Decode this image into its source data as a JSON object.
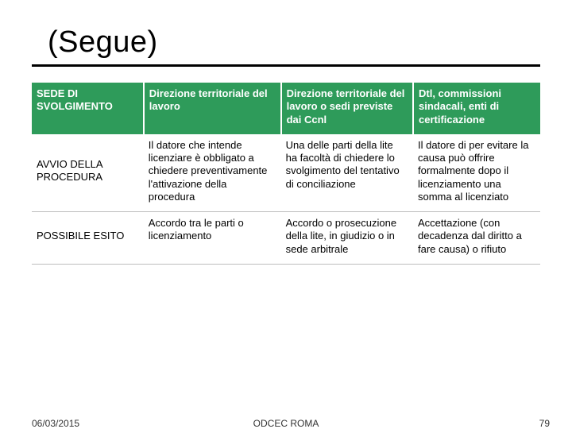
{
  "title": "(Segue)",
  "colors": {
    "header_bg": "#2e9b5a",
    "header_fg": "#ffffff",
    "rule": "#000000",
    "row_border": "#bdbdbd",
    "text": "#000000",
    "background": "#ffffff"
  },
  "table": {
    "columns": [
      "rowlabel",
      "col1",
      "col2",
      "col3"
    ],
    "column_widths_pct": [
      22,
      27,
      26,
      25
    ],
    "header": {
      "rowlabel": "SEDE DI SVOLGIMENTO",
      "col1": "Direzione territoriale del lavoro",
      "col2": "Direzione territoriale del lavoro o sedi previste dai Ccnl",
      "col3": "Dtl, commissioni sindacali, enti di certificazione"
    },
    "rows": [
      {
        "rowlabel": "AVVIO DELLA PROCEDURA",
        "col1": "Il datore che intende licenziare è obbligato a chiedere preventivamente l'attivazione della procedura",
        "col2": "Una delle parti della lite ha facoltà di chiedere lo svolgimento del tentativo di conciliazione",
        "col3": "Il datore di per evitare la causa può offrire formalmente dopo il licenziamento una somma al licenziato"
      },
      {
        "rowlabel": "POSSIBILE ESITO",
        "col1": "Accordo tra le parti o licenziamento",
        "col2": "Accordo o prosecuzione della lite, in giudizio o in sede arbitrale",
        "col3": "Accettazione (con decadenza dal diritto a fare causa) o rifiuto"
      }
    ]
  },
  "footer": {
    "date": "06/03/2015",
    "center": "ODCEC ROMA",
    "page": "79"
  },
  "typography": {
    "title_fontsize_pt": 29,
    "cell_fontsize_pt": 10,
    "footer_fontsize_pt": 9
  }
}
